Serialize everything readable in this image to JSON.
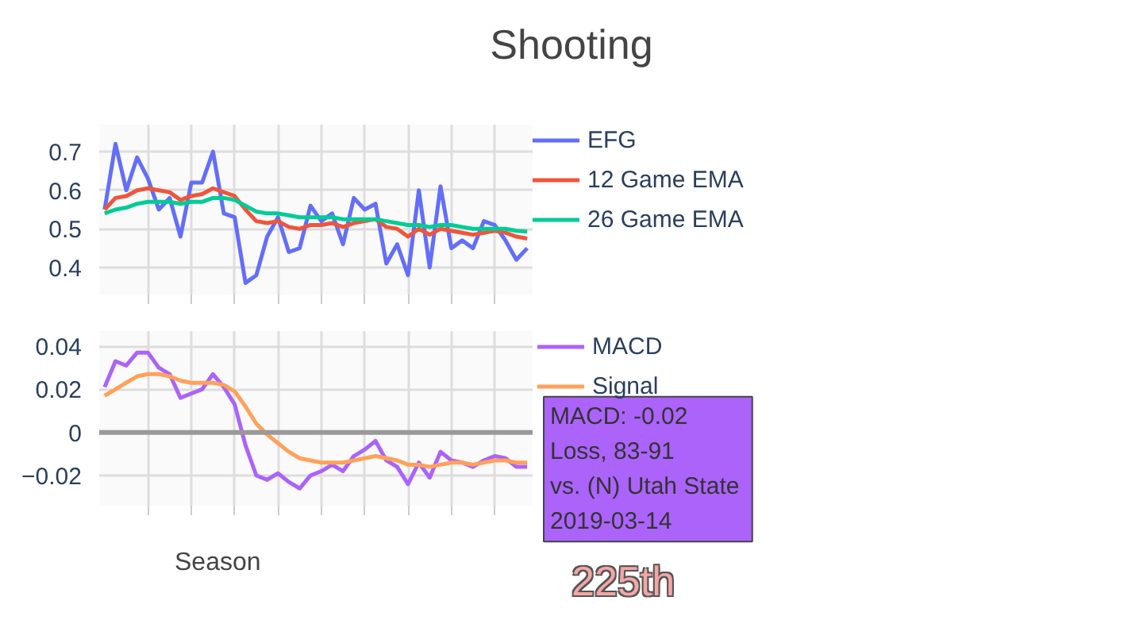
{
  "chart_data": [
    {
      "type": "line",
      "title": "Shooting",
      "categories": [
        null,
        null,
        null,
        null,
        null,
        null,
        null,
        null,
        null,
        null,
        null,
        null,
        null,
        null,
        null,
        null,
        null,
        null,
        null,
        null,
        null,
        null,
        null,
        null,
        null,
        null,
        null,
        null,
        null,
        null,
        null,
        null,
        null,
        null,
        null,
        null,
        null,
        null,
        null,
        null
      ],
      "series": [
        {
          "name": "EFG",
          "color": "#636efa",
          "values": [
            0.55,
            0.72,
            0.6,
            0.685,
            0.63,
            0.55,
            0.58,
            0.48,
            0.62,
            0.62,
            0.7,
            0.54,
            0.53,
            0.36,
            0.38,
            0.48,
            0.53,
            0.44,
            0.45,
            0.56,
            0.52,
            0.54,
            0.46,
            0.58,
            0.55,
            0.565,
            0.41,
            0.46,
            0.38,
            0.6,
            0.4,
            0.61,
            0.45,
            0.47,
            0.45,
            0.52,
            0.51,
            0.47,
            0.42,
            0.45
          ]
        },
        {
          "name": "12 Game EMA",
          "color": "#ef553b",
          "values": [
            0.55,
            0.58,
            0.585,
            0.6,
            0.605,
            0.6,
            0.595,
            0.575,
            0.585,
            0.59,
            0.605,
            0.595,
            0.585,
            0.55,
            0.52,
            0.515,
            0.52,
            0.505,
            0.5,
            0.51,
            0.51,
            0.515,
            0.505,
            0.515,
            0.52,
            0.525,
            0.505,
            0.5,
            0.48,
            0.5,
            0.485,
            0.5,
            0.495,
            0.49,
            0.485,
            0.49,
            0.495,
            0.49,
            0.48,
            0.475
          ]
        },
        {
          "name": "26 Game EMA",
          "color": "#00cc96",
          "values": [
            0.54,
            0.55,
            0.555,
            0.565,
            0.57,
            0.57,
            0.57,
            0.565,
            0.57,
            0.57,
            0.58,
            0.58,
            0.575,
            0.56,
            0.545,
            0.54,
            0.54,
            0.535,
            0.53,
            0.53,
            0.53,
            0.53,
            0.525,
            0.525,
            0.525,
            0.525,
            0.52,
            0.515,
            0.51,
            0.51,
            0.505,
            0.51,
            0.51,
            0.505,
            0.5,
            0.5,
            0.5,
            0.5,
            0.495,
            0.493
          ]
        }
      ],
      "ylim": [
        0.33,
        0.77
      ],
      "yticks": [
        0.4,
        0.5,
        0.6,
        0.7
      ],
      "grid": true,
      "legend": "right",
      "tick_labels": "y"
    },
    {
      "type": "line",
      "categories": [
        null,
        null,
        null,
        null,
        null,
        null,
        null,
        null,
        null,
        null,
        null,
        null,
        null,
        null,
        null,
        null,
        null,
        null,
        null,
        null,
        null,
        null,
        null,
        null,
        null,
        null,
        null,
        null,
        null,
        null,
        null,
        null,
        null,
        null,
        null,
        null,
        null,
        null,
        null,
        null
      ],
      "series": [
        {
          "name": "MACD",
          "color": "#ab63fa",
          "values": [
            0.021,
            0.033,
            0.031,
            0.037,
            0.037,
            0.03,
            0.027,
            0.016,
            0.018,
            0.02,
            0.027,
            0.021,
            0.013,
            -0.006,
            -0.02,
            -0.022,
            -0.019,
            -0.023,
            -0.026,
            -0.02,
            -0.018,
            -0.015,
            -0.018,
            -0.011,
            -0.008,
            -0.004,
            -0.013,
            -0.016,
            -0.024,
            -0.014,
            -0.021,
            -0.009,
            -0.013,
            -0.014,
            -0.016,
            -0.013,
            -0.011,
            -0.012,
            -0.016,
            -0.016
          ]
        },
        {
          "name": "Signal",
          "color": "#ffa15a",
          "values": [
            0.017,
            0.02,
            0.023,
            0.026,
            0.027,
            0.027,
            0.026,
            0.024,
            0.023,
            0.023,
            0.023,
            0.022,
            0.019,
            0.012,
            0.004,
            -0.001,
            -0.005,
            -0.009,
            -0.012,
            -0.013,
            -0.014,
            -0.014,
            -0.014,
            -0.013,
            -0.012,
            -0.011,
            -0.012,
            -0.013,
            -0.015,
            -0.015,
            -0.016,
            -0.015,
            -0.014,
            -0.014,
            -0.015,
            -0.014,
            -0.013,
            -0.013,
            -0.014,
            -0.014
          ]
        }
      ],
      "ylim": [
        -0.034,
        0.047
      ],
      "yticks": [
        {
          "value": -0.02,
          "label": "−0.02"
        },
        0.02,
        0.04,
        0
      ],
      "grid": true,
      "legend": "right",
      "tick_labels": "y",
      "ref_lines": [
        {
          "axis": "y",
          "value": 0,
          "color": "#999999"
        }
      ],
      "annotations": [
        "MACD: -0.02\nLoss, 83-91\nvs. (N)  Utah State\n2019-03-14",
        "Season",
        "225th"
      ]
    }
  ]
}
